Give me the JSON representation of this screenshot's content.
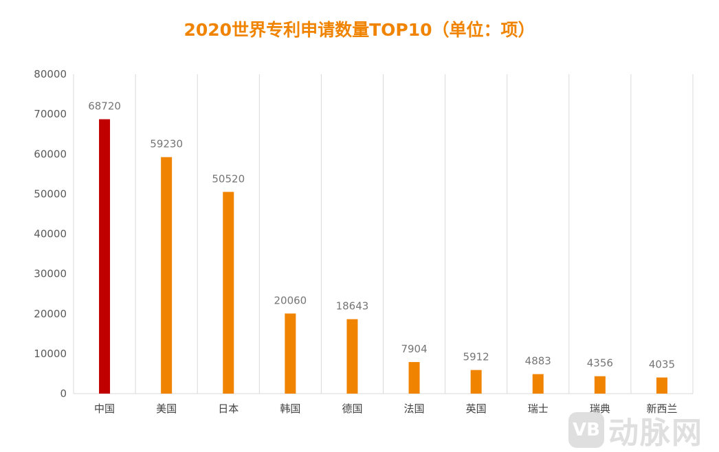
{
  "chart_data": {
    "type": "bar",
    "title": "2020世界专利申请数量TOP10（单位：项）",
    "categories": [
      "中国",
      "美国",
      "日本",
      "韩国",
      "德国",
      "法国",
      "英国",
      "瑞士",
      "瑞典",
      "新西兰"
    ],
    "values": [
      68720,
      59230,
      50520,
      20060,
      18643,
      7904,
      5912,
      4883,
      4356,
      4035
    ],
    "ylim": [
      0,
      80000
    ],
    "yticks": [
      0,
      10000,
      20000,
      30000,
      40000,
      50000,
      60000,
      70000,
      80000
    ],
    "grid": "vertical category separators",
    "colors": {
      "highlight": "#C00000",
      "bar": "#F08300",
      "title": "#F08300"
    },
    "highlight_index": 0,
    "xlabel": "",
    "ylabel": ""
  },
  "watermark": {
    "logo_text": "VB",
    "text": "动脉网"
  }
}
